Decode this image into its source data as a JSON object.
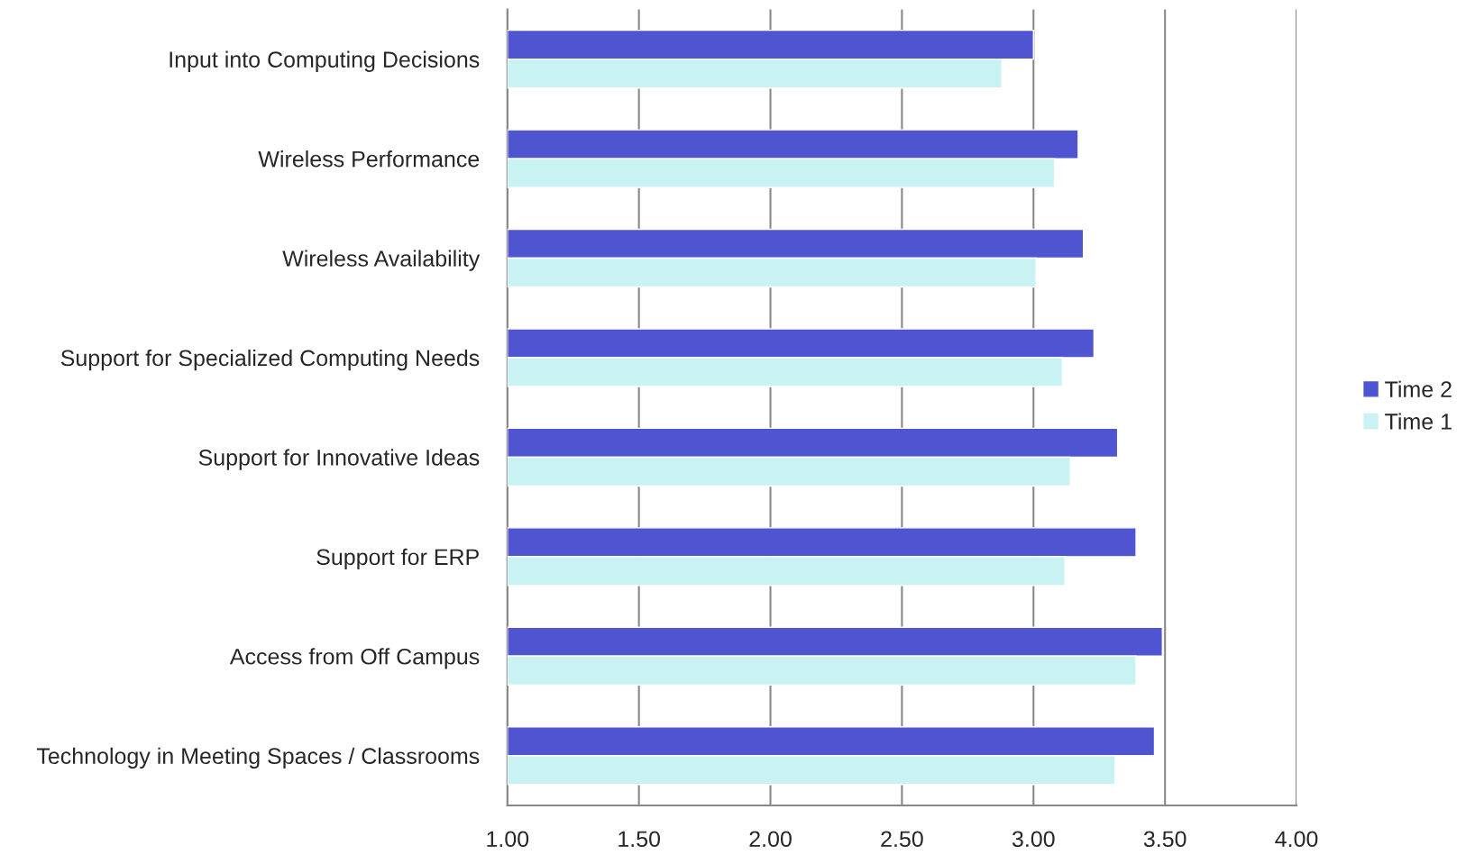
{
  "chart_data": {
    "type": "bar",
    "orientation": "horizontal",
    "categories": [
      "Input into Computing Decisions",
      "Wireless Performance",
      "Wireless Availability",
      "Support for Specialized Computing Needs",
      "Support for Innovative Ideas",
      "Support for ERP",
      "Access from Off Campus",
      "Technology in Meeting Spaces / Classrooms"
    ],
    "series": [
      {
        "name": "Time 2",
        "color": "#4f54d0",
        "values": [
          3.0,
          3.17,
          3.19,
          3.23,
          3.32,
          3.39,
          3.49,
          3.46
        ]
      },
      {
        "name": "Time 1",
        "color": "#c9f3f3",
        "values": [
          2.88,
          3.08,
          3.01,
          3.11,
          3.14,
          3.12,
          3.39,
          3.31
        ]
      }
    ],
    "xlim": [
      1,
      4
    ],
    "xticks": [
      {
        "value": 1,
        "label": "1.00"
      },
      {
        "value": 1.5,
        "label": "1.50"
      },
      {
        "value": 2,
        "label": "2.00"
      },
      {
        "value": 2.5,
        "label": "2.50"
      },
      {
        "value": 3,
        "label": "3.00"
      },
      {
        "value": 3.5,
        "label": "3.50"
      },
      {
        "value": 4,
        "label": "4.00"
      }
    ],
    "grid": "x",
    "legend": "right"
  }
}
